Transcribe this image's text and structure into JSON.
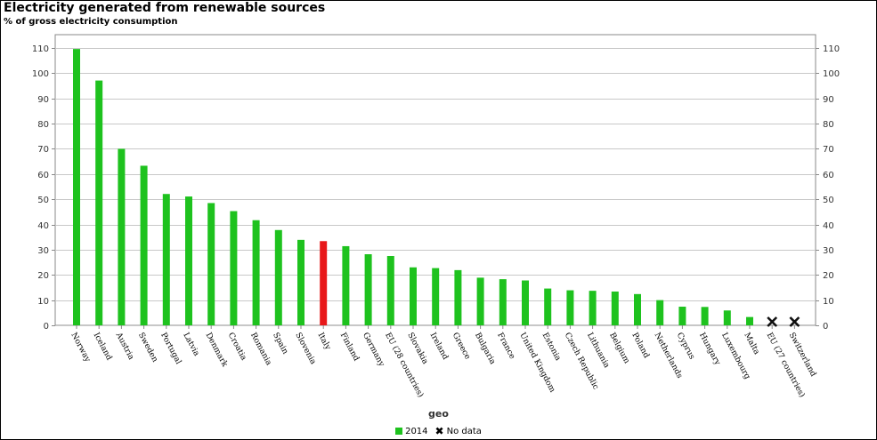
{
  "header": {
    "title": "Electricity generated from renewable sources",
    "subtitle": "% of gross electricity consumption"
  },
  "legend": {
    "series_label": "2014",
    "nodata_label": "No data",
    "nodata_symbol": "✖"
  },
  "colors": {
    "bar": "#1ec21e",
    "highlight": "#e8181a",
    "grid": "#c8c8c8",
    "axis": "#888888",
    "nodata": "#111111"
  },
  "chart_data": {
    "type": "bar",
    "title": "Electricity generated from renewable sources",
    "subtitle": "% of gross electricity consumption",
    "xlabel": "geo",
    "ylabel": "",
    "ylim": [
      0,
      110
    ],
    "yticks": [
      0,
      10,
      20,
      30,
      40,
      50,
      60,
      70,
      80,
      90,
      100,
      110
    ],
    "grid": true,
    "legend_position": "bottom",
    "highlight_category": "Italy",
    "categories": [
      "Norway",
      "Iceland",
      "Austria",
      "Sweden",
      "Portugal",
      "Latvia",
      "Denmark",
      "Croatia",
      "Romania",
      "Spain",
      "Slovenia",
      "Italy",
      "Finland",
      "Germany",
      "EU (28 countries)",
      "Slovakia",
      "Ireland",
      "Greece",
      "Bulgaria",
      "France",
      "United Kingdom",
      "Estonia",
      "Czech Republic",
      "Lithuania",
      "Belgium",
      "Poland",
      "Netherlands",
      "Cyprus",
      "Hungary",
      "Luxembourg",
      "Malta",
      "EU (27 countries)",
      "Switzerland"
    ],
    "series": [
      {
        "name": "2014",
        "values": [
          109.6,
          97.1,
          70.0,
          63.3,
          52.1,
          51.1,
          48.5,
          45.3,
          41.7,
          37.8,
          33.9,
          33.4,
          31.4,
          28.2,
          27.5,
          23.0,
          22.7,
          21.9,
          18.9,
          18.3,
          17.8,
          14.6,
          13.9,
          13.7,
          13.4,
          12.4,
          10.0,
          7.4,
          7.3,
          5.9,
          3.3,
          null,
          null
        ]
      }
    ],
    "no_data": [
      "EU (27 countries)",
      "Switzerland"
    ]
  }
}
